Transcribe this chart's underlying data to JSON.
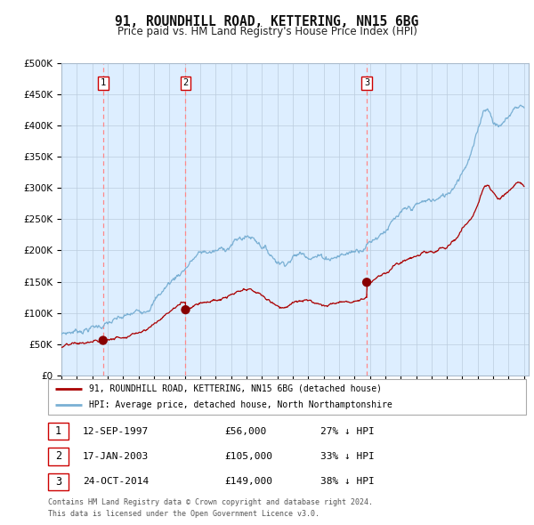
{
  "title": "91, ROUNDHILL ROAD, KETTERING, NN15 6BG",
  "subtitle": "Price paid vs. HM Land Registry's House Price Index (HPI)",
  "ylabel_ticks": [
    "£0",
    "£50K",
    "£100K",
    "£150K",
    "£200K",
    "£250K",
    "£300K",
    "£350K",
    "£400K",
    "£450K",
    "£500K"
  ],
  "y_values": [
    0,
    50000,
    100000,
    150000,
    200000,
    250000,
    300000,
    350000,
    400000,
    450000,
    500000
  ],
  "x_start_year": 1995,
  "x_end_year": 2025,
  "sale_points": [
    {
      "date_num": 1997.7,
      "price": 56000,
      "label": "1"
    },
    {
      "date_num": 2003.05,
      "price": 105000,
      "label": "2"
    },
    {
      "date_num": 2014.8,
      "price": 149000,
      "label": "3"
    }
  ],
  "sale_table": [
    {
      "num": "1",
      "date": "12-SEP-1997",
      "price": "£56,000",
      "hpi": "27% ↓ HPI"
    },
    {
      "num": "2",
      "date": "17-JAN-2003",
      "price": "£105,000",
      "hpi": "33% ↓ HPI"
    },
    {
      "num": "3",
      "date": "24-OCT-2014",
      "price": "£149,000",
      "hpi": "38% ↓ HPI"
    }
  ],
  "legend_line1": "91, ROUNDHILL ROAD, KETTERING, NN15 6BG (detached house)",
  "legend_line2": "HPI: Average price, detached house, North Northamptonshire",
  "footer_line1": "Contains HM Land Registry data © Crown copyright and database right 2024.",
  "footer_line2": "This data is licensed under the Open Government Licence v3.0.",
  "line_color_red": "#aa0000",
  "line_color_blue": "#7ab0d4",
  "dot_color_red": "#880000",
  "background_color": "#ffffff",
  "chart_bg_color": "#ddeeff",
  "grid_color": "#bbccdd",
  "vline_color": "#ff8888"
}
